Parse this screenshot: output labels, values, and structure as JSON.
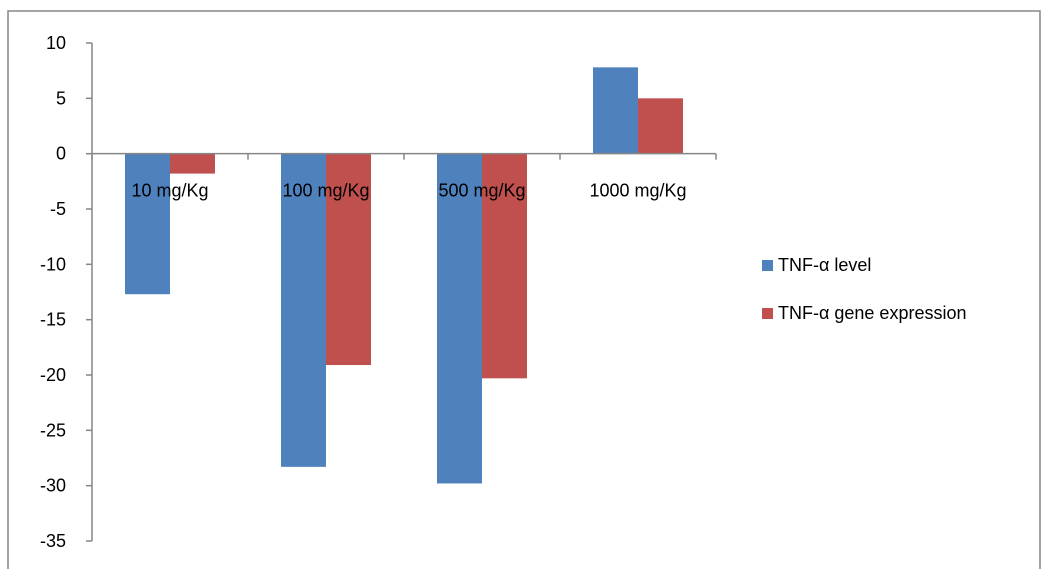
{
  "chart_data": {
    "type": "bar",
    "categories": [
      "10 mg/Kg",
      "100 mg/Kg",
      "500 mg/Kg",
      "1000 mg/Kg"
    ],
    "series": [
      {
        "name": "TNF-α level",
        "values": [
          -12.7,
          -28.3,
          -29.8,
          7.8
        ],
        "color": "#4F81BD"
      },
      {
        "name": "TNF-α gene expression",
        "values": [
          -1.8,
          -19.1,
          -20.3,
          5.0
        ],
        "color": "#C0504D"
      }
    ],
    "ylim": [
      -35,
      10
    ],
    "yticks": [
      10,
      5,
      0,
      -5,
      -10,
      -15,
      -20,
      -25,
      -30,
      -35
    ],
    "title": "",
    "xlabel": "",
    "ylabel": "",
    "grid": false,
    "legend_position": "right"
  }
}
